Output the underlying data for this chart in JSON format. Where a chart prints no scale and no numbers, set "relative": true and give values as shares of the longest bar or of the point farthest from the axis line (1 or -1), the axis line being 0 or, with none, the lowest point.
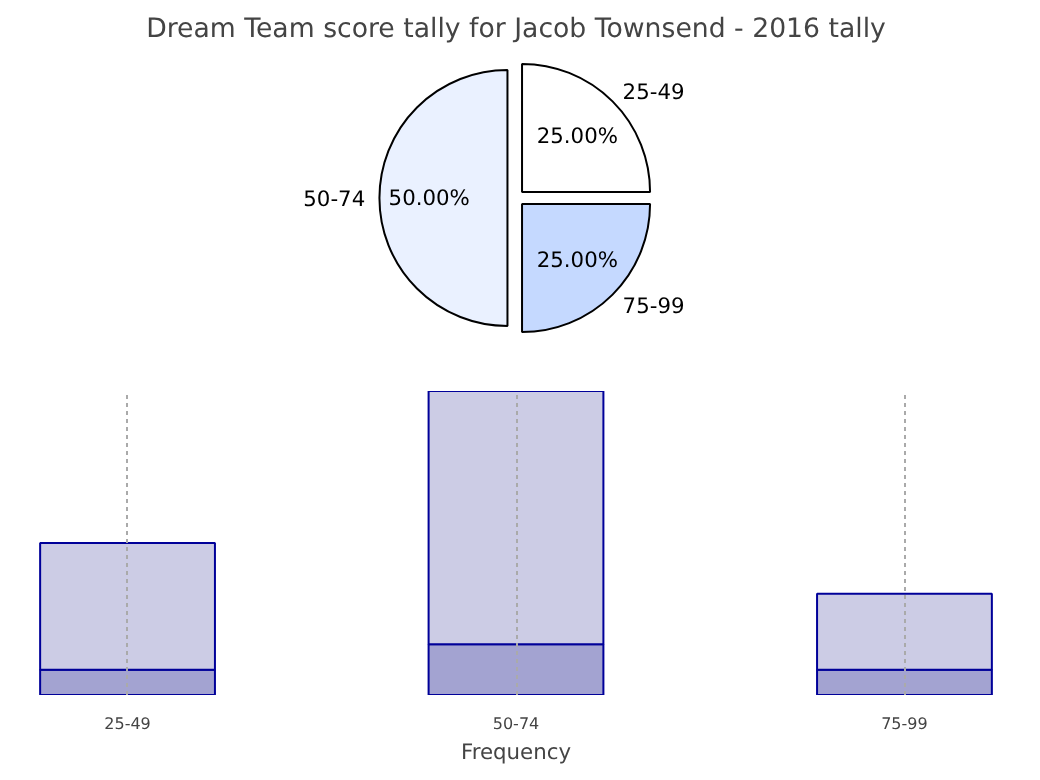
{
  "chart_data": [
    {
      "type": "pie",
      "title": "Dream Team score tally for Jacob Townsend - 2016 tally",
      "categories": [
        "25-49",
        "50-74",
        "75-99"
      ],
      "values": [
        25,
        50,
        25
      ],
      "colors": [
        "#ffffff",
        "#eaf1ff",
        "#c5d9ff"
      ],
      "value_labels": [
        "25.00%",
        "50.00%",
        "25.00%"
      ]
    },
    {
      "type": "bar",
      "stacked": true,
      "relative": true,
      "xlabel": "Frequency",
      "categories": [
        "25-49",
        "50-74",
        "75-99"
      ],
      "grid": "x",
      "series": [
        {
          "color": "#a3a3d1",
          "values": [
            0.083,
            0.167,
            0.083
          ]
        },
        {
          "color": "#cccce5",
          "values": [
            0.417,
            0.833,
            0.25
          ]
        }
      ]
    }
  ]
}
